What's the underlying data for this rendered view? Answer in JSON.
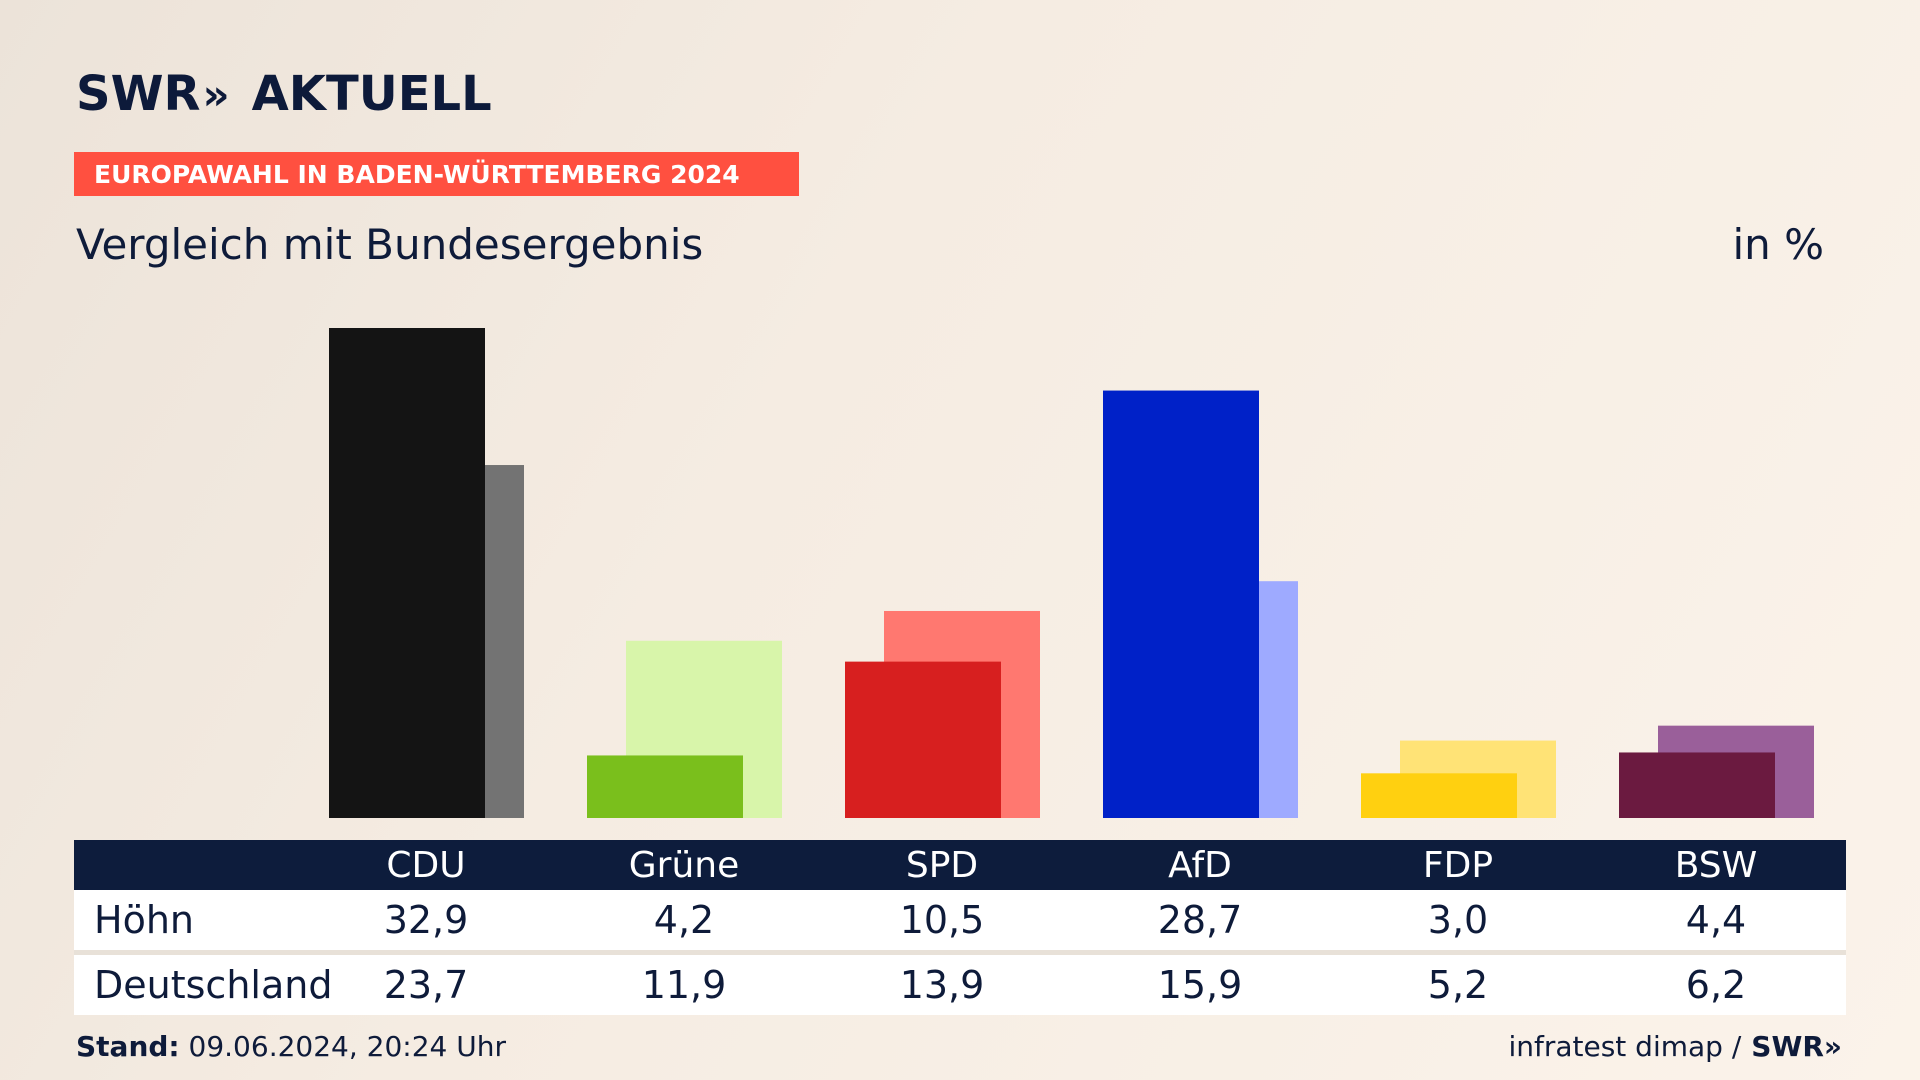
{
  "brand": {
    "swr": "SWR",
    "chevrons": "»",
    "aktuell": "AKTUELL"
  },
  "banner": "EUROPAWAHL IN BADEN-WÜRTTEMBERG 2024",
  "subtitle": "Vergleich mit Bundesergebnis",
  "unit": "in %",
  "chart_data": {
    "type": "bar",
    "categories": [
      "CDU",
      "Grüne",
      "SPD",
      "AfD",
      "FDP",
      "BSW"
    ],
    "series": [
      {
        "name": "Höhn",
        "values": [
          32.9,
          4.2,
          10.5,
          28.7,
          3.0,
          4.4
        ],
        "colors": [
          "#141414",
          "#7abf1c",
          "#d71f1f",
          "#0021c8",
          "#ffd010",
          "#6b1a40"
        ]
      },
      {
        "name": "Deutschland",
        "values": [
          23.7,
          11.9,
          13.9,
          15.9,
          5.2,
          6.2
        ],
        "colors": [
          "#737373",
          "#d8f5aa",
          "#ff7870",
          "#9eaaff",
          "#ffe376",
          "#9a5f9a"
        ]
      }
    ],
    "ylim": [
      0,
      32.9
    ]
  },
  "table": {
    "headers": [
      "CDU",
      "Grüne",
      "SPD",
      "AfD",
      "FDP",
      "BSW"
    ],
    "rows": [
      {
        "label": "Höhn",
        "values": [
          "32,9",
          "4,2",
          "10,5",
          "28,7",
          "3,0",
          "4,4"
        ]
      },
      {
        "label": "Deutschland",
        "values": [
          "23,7",
          "11,9",
          "13,9",
          "15,9",
          "5,2",
          "6,2"
        ]
      }
    ]
  },
  "footer": {
    "stand_label": "Stand:",
    "stand_value": "09.06.2024, 20:24 Uhr",
    "source": "infratest dimap /",
    "source_brand": "SWR",
    "source_chevrons": "»"
  }
}
